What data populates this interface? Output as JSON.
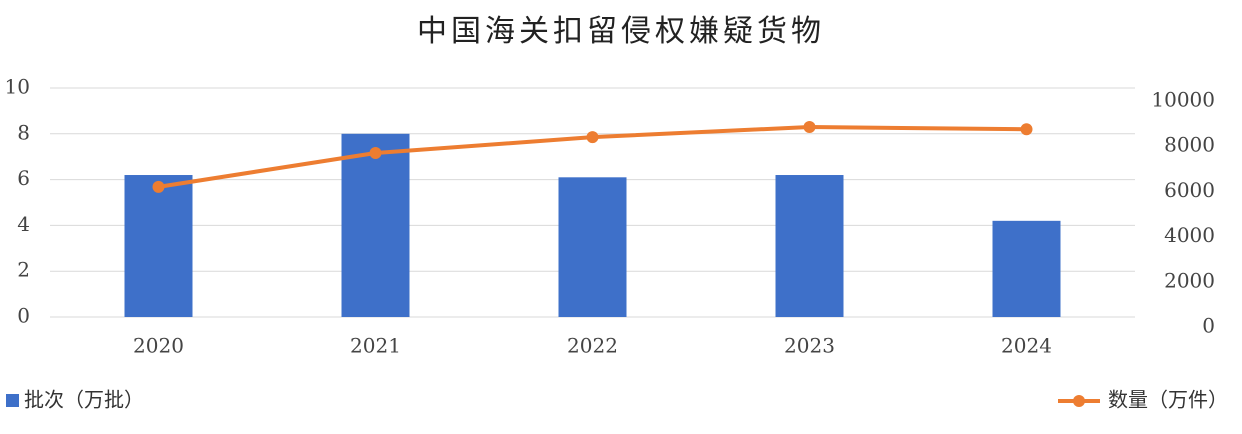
{
  "chart_data": {
    "type": "bar",
    "title": "中国海关扣留侵权嫌疑货物",
    "categories": [
      "2020",
      "2021",
      "2022",
      "2023",
      "2024"
    ],
    "series": [
      {
        "name": "批次（万批）",
        "type": "bar",
        "color": "#3e70c9",
        "values": [
          6.2,
          8.0,
          6.1,
          6.2,
          4.2
        ]
      },
      {
        "name": "数量（万件）",
        "type": "line",
        "axis": "y2",
        "color": "#ed7d31",
        "values": [
          6200,
          7700,
          8400,
          8850,
          8750
        ]
      }
    ],
    "ylim": [
      0,
      10
    ],
    "yticks": [
      0,
      2,
      4,
      6,
      8,
      10
    ],
    "y2lim": [
      0,
      10000
    ],
    "y2ticks": [
      0,
      2000,
      4000,
      6000,
      8000,
      10000
    ],
    "grid": true
  }
}
